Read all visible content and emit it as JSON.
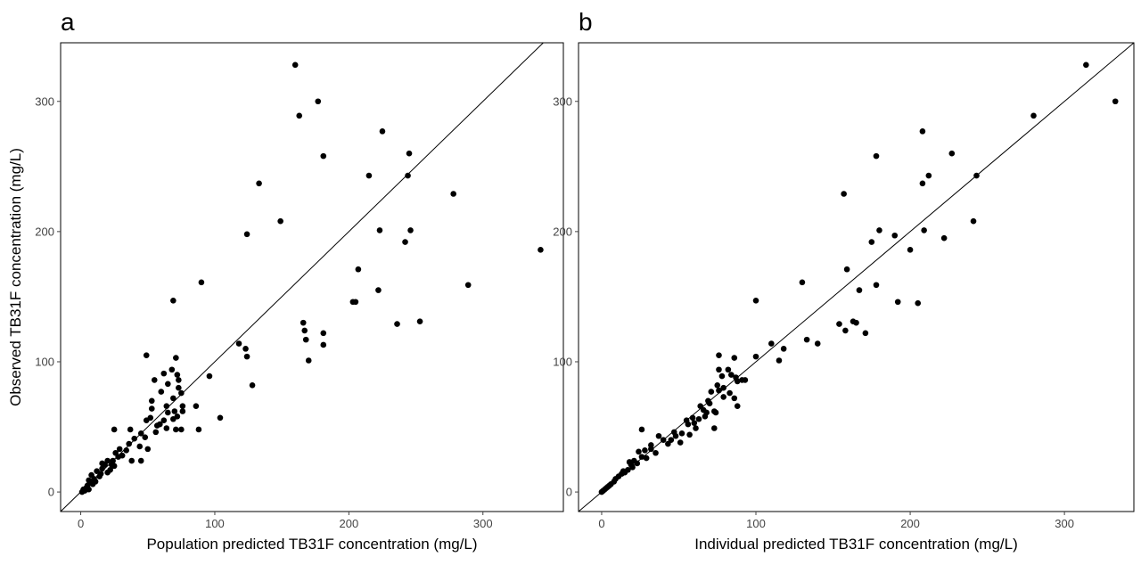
{
  "chart_data": [
    {
      "type": "scatter",
      "panel_label": "a",
      "xlabel": "Population predicted TB31F concentration (mg/L)",
      "ylabel": "Observed TB31F concentration (mg/L)",
      "xlim": [
        -15,
        360
      ],
      "ylim": [
        -15,
        345
      ],
      "xticks": [
        0,
        100,
        200,
        300
      ],
      "yticks": [
        0,
        100,
        200,
        300
      ],
      "reference_line": "identity",
      "points": [
        [
          160,
          328
        ],
        [
          177,
          300
        ],
        [
          163,
          289
        ],
        [
          225,
          277
        ],
        [
          245,
          260
        ],
        [
          181,
          258
        ],
        [
          215,
          243
        ],
        [
          244,
          243
        ],
        [
          133,
          237
        ],
        [
          278,
          229
        ],
        [
          149,
          208
        ],
        [
          223,
          201
        ],
        [
          246,
          201
        ],
        [
          124,
          198
        ],
        [
          242,
          192
        ],
        [
          343,
          186
        ],
        [
          207,
          171
        ],
        [
          90,
          161
        ],
        [
          289,
          159
        ],
        [
          222,
          155
        ],
        [
          69,
          147
        ],
        [
          203,
          146
        ],
        [
          205,
          146
        ],
        [
          253,
          131
        ],
        [
          166,
          130
        ],
        [
          236,
          129
        ],
        [
          167,
          124
        ],
        [
          181,
          122
        ],
        [
          168,
          117
        ],
        [
          181,
          113
        ],
        [
          118,
          114
        ],
        [
          123,
          110
        ],
        [
          124,
          104
        ],
        [
          170,
          101
        ],
        [
          49,
          105
        ],
        [
          71,
          103
        ],
        [
          62,
          91
        ],
        [
          68,
          94
        ],
        [
          72,
          90
        ],
        [
          55,
          86
        ],
        [
          73,
          86
        ],
        [
          96,
          89
        ],
        [
          65,
          83
        ],
        [
          73,
          80
        ],
        [
          75,
          76
        ],
        [
          60,
          77
        ],
        [
          69,
          72
        ],
        [
          76,
          66
        ],
        [
          64,
          66
        ],
        [
          70,
          62
        ],
        [
          76,
          62
        ],
        [
          86,
          66
        ],
        [
          53,
          64
        ],
        [
          65,
          61
        ],
        [
          72,
          58
        ],
        [
          104,
          57
        ],
        [
          52,
          57
        ],
        [
          62,
          55
        ],
        [
          69,
          56
        ],
        [
          49,
          55
        ],
        [
          57,
          51
        ],
        [
          64,
          49
        ],
        [
          71,
          48
        ],
        [
          75,
          48
        ],
        [
          88,
          48
        ],
        [
          56,
          46
        ],
        [
          45,
          45
        ],
        [
          40,
          41
        ],
        [
          48,
          42
        ],
        [
          37,
          48
        ],
        [
          25,
          48
        ],
        [
          128,
          82
        ],
        [
          36,
          37
        ],
        [
          29,
          33
        ],
        [
          34,
          32
        ],
        [
          50,
          33
        ],
        [
          31,
          28
        ],
        [
          45,
          24
        ],
        [
          38,
          24
        ],
        [
          24,
          24
        ],
        [
          20,
          24
        ],
        [
          16,
          22
        ],
        [
          28,
          27
        ],
        [
          25,
          20
        ],
        [
          18,
          21
        ],
        [
          22,
          17
        ],
        [
          12,
          16
        ],
        [
          15,
          14
        ],
        [
          20,
          15
        ],
        [
          14,
          12
        ],
        [
          8,
          13
        ],
        [
          10,
          10
        ],
        [
          11,
          8
        ],
        [
          6,
          9
        ],
        [
          7,
          7
        ],
        [
          9,
          6
        ],
        [
          5,
          5
        ],
        [
          4,
          3
        ],
        [
          6,
          2
        ],
        [
          2,
          2
        ],
        [
          3,
          1
        ],
        [
          1,
          0
        ],
        [
          16,
          18
        ],
        [
          23,
          21
        ],
        [
          26,
          30
        ],
        [
          44,
          35
        ],
        [
          59,
          52
        ],
        [
          53,
          70
        ]
      ]
    },
    {
      "type": "scatter",
      "panel_label": "b",
      "xlabel": "Individual predicted TB31F concentration (mg/L)",
      "ylabel": "",
      "xlim": [
        -15,
        345
      ],
      "ylim": [
        -15,
        345
      ],
      "xticks": [
        0,
        100,
        200,
        300
      ],
      "yticks": [
        0,
        100,
        200,
        300
      ],
      "reference_line": "identity",
      "points": [
        [
          314,
          328
        ],
        [
          333,
          300
        ],
        [
          280,
          289
        ],
        [
          208,
          277
        ],
        [
          227,
          260
        ],
        [
          178,
          258
        ],
        [
          212,
          243
        ],
        [
          243,
          243
        ],
        [
          208,
          237
        ],
        [
          157,
          229
        ],
        [
          241,
          208
        ],
        [
          209,
          201
        ],
        [
          180,
          201
        ],
        [
          190,
          197
        ],
        [
          222,
          195
        ],
        [
          175,
          192
        ],
        [
          200,
          186
        ],
        [
          159,
          171
        ],
        [
          130,
          161
        ],
        [
          178,
          159
        ],
        [
          167,
          155
        ],
        [
          100,
          147
        ],
        [
          192,
          146
        ],
        [
          205,
          145
        ],
        [
          163,
          131
        ],
        [
          165,
          130
        ],
        [
          154,
          129
        ],
        [
          158,
          124
        ],
        [
          171,
          122
        ],
        [
          133,
          117
        ],
        [
          140,
          114
        ],
        [
          110,
          114
        ],
        [
          118,
          110
        ],
        [
          115,
          101
        ],
        [
          100,
          104
        ],
        [
          86,
          103
        ],
        [
          76,
          105
        ],
        [
          76,
          94
        ],
        [
          82,
          94
        ],
        [
          87,
          88
        ],
        [
          91,
          86
        ],
        [
          84,
          90
        ],
        [
          78,
          89
        ],
        [
          75,
          82
        ],
        [
          79,
          80
        ],
        [
          83,
          76
        ],
        [
          86,
          72
        ],
        [
          71,
          77
        ],
        [
          79,
          73
        ],
        [
          88,
          66
        ],
        [
          70,
          68
        ],
        [
          73,
          62
        ],
        [
          64,
          66
        ],
        [
          68,
          61
        ],
        [
          74,
          61
        ],
        [
          59,
          57
        ],
        [
          63,
          56
        ],
        [
          67,
          58
        ],
        [
          73,
          49
        ],
        [
          56,
          52
        ],
        [
          61,
          49
        ],
        [
          52,
          45
        ],
        [
          57,
          44
        ],
        [
          48,
          43
        ],
        [
          51,
          38
        ],
        [
          45,
          40
        ],
        [
          43,
          37
        ],
        [
          40,
          40
        ],
        [
          37,
          43
        ],
        [
          32,
          36
        ],
        [
          26,
          48
        ],
        [
          32,
          33
        ],
        [
          28,
          32
        ],
        [
          24,
          31
        ],
        [
          26,
          27
        ],
        [
          21,
          24
        ],
        [
          18,
          23
        ],
        [
          20,
          19
        ],
        [
          17,
          17
        ],
        [
          15,
          15
        ],
        [
          13,
          14
        ],
        [
          11,
          12
        ],
        [
          9,
          10
        ],
        [
          8,
          8
        ],
        [
          6,
          6
        ],
        [
          5,
          5
        ],
        [
          4,
          4
        ],
        [
          3,
          3
        ],
        [
          2,
          2
        ],
        [
          1,
          1
        ],
        [
          0,
          0
        ],
        [
          14,
          16
        ],
        [
          19,
          21
        ],
        [
          23,
          22
        ],
        [
          29,
          26
        ],
        [
          35,
          30
        ],
        [
          47,
          46
        ],
        [
          55,
          55
        ],
        [
          60,
          53
        ],
        [
          66,
          63
        ],
        [
          69,
          70
        ],
        [
          76,
          78
        ],
        [
          88,
          85
        ],
        [
          93,
          86
        ]
      ]
    }
  ]
}
